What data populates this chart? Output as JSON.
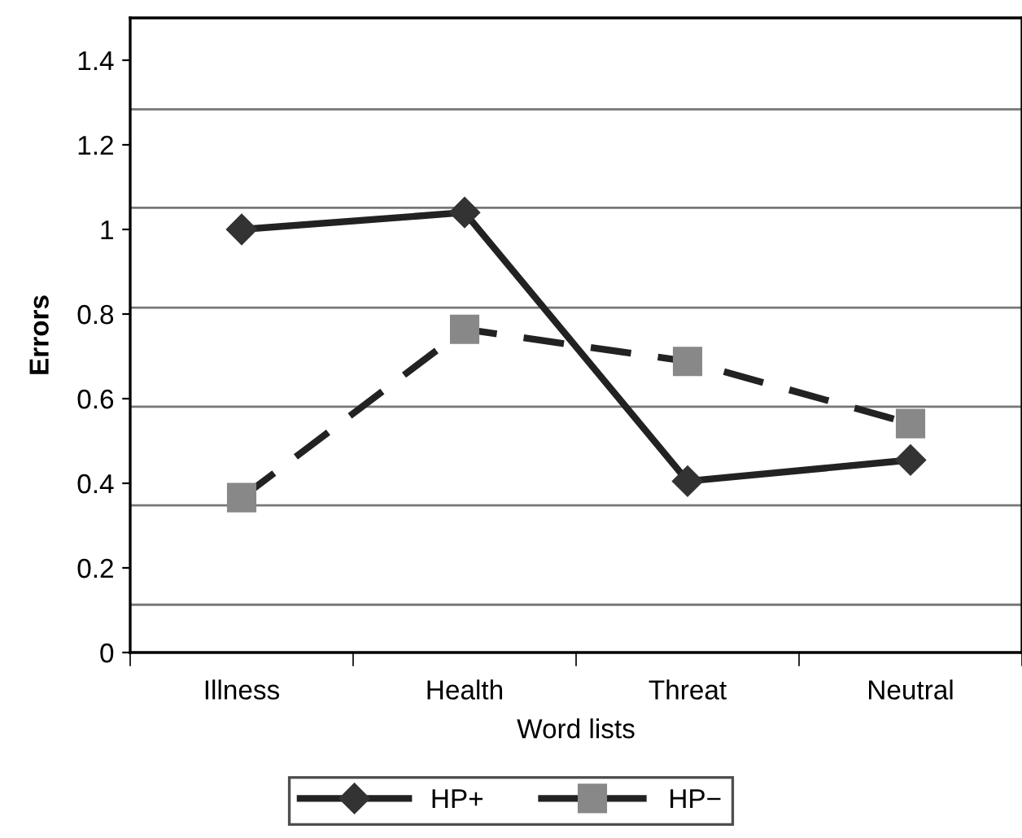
{
  "chart_data": {
    "type": "line",
    "xlabel": "Word lists",
    "ylabel": "Errors",
    "categories": [
      "Illness",
      "Health",
      "Threat",
      "Neutral"
    ],
    "series": [
      {
        "name": "HP+",
        "color": "#333333",
        "values": [
          1.0,
          1.04,
          0.405,
          0.455
        ],
        "marker": "diamond",
        "line_style": "solid"
      },
      {
        "name": "HP−",
        "color": "#888888",
        "values": [
          0.366,
          0.764,
          0.688,
          0.541
        ],
        "marker": "square",
        "line_style": "dashed"
      }
    ],
    "ylim": [
      0,
      1.5
    ],
    "yticks": [
      0,
      0.2,
      0.4,
      0.6,
      0.8,
      1,
      1.2,
      1.4
    ],
    "ref_lines": [
      {
        "axis": "y",
        "value": 0.113,
        "color": "#777777"
      },
      {
        "axis": "y",
        "value": 0.348,
        "color": "#777777"
      },
      {
        "axis": "y",
        "value": 0.581,
        "color": "#777777"
      },
      {
        "axis": "y",
        "value": 0.815,
        "color": "#777777"
      },
      {
        "axis": "y",
        "value": 1.051,
        "color": "#777777"
      },
      {
        "axis": "y",
        "value": 1.284,
        "color": "#777777"
      }
    ],
    "grid": false,
    "legend": "bottom"
  }
}
